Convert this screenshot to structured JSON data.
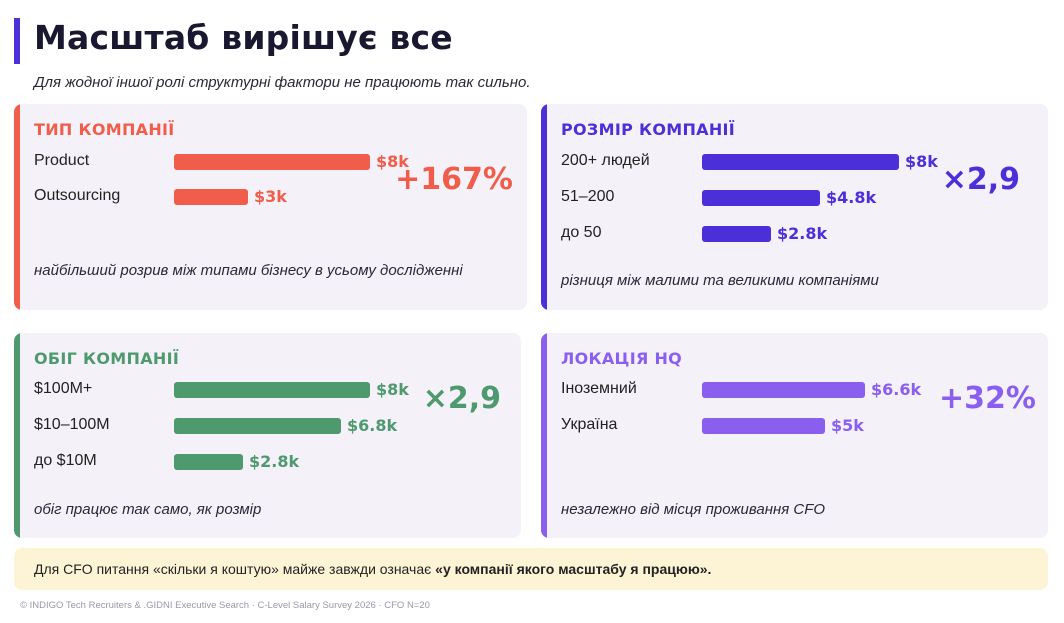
{
  "page": {
    "title": "Масштаб вирішує все",
    "subtitle": "Для жодної іншої ролі структурні фактори не працюють так сильно.",
    "callout_plain": "Для CFO питання «скільки я коштую» майже завжди означає ",
    "callout_bold": "«у компанії якого масштабу я працюю».",
    "footer": "© INDIGO Tech Recruiters & .GIDNI Executive Search · C-Level Salary Survey 2026 · CFO N=20"
  },
  "colors": {
    "type": "#f05d4b",
    "size": "#4b2fd9",
    "revenue": "#4e9a6e",
    "location": "#8a5ff0",
    "title_bar": "#4b2fd9",
    "card_bg": "#f4f2f8",
    "callout_bg": "#fdf4d6"
  },
  "chart_data": [
    {
      "type": "bar",
      "title": "ТИП КОМПАНІЇ",
      "categories": [
        "Product",
        "Outsourcing"
      ],
      "values": [
        8,
        3
      ],
      "value_labels": [
        "$8k",
        "$3k"
      ],
      "unit": "$k",
      "metric": "+167%",
      "note": "найбільший розрив між типами бізнесу в усьому дослідженні"
    },
    {
      "type": "bar",
      "title": "РОЗМІР КОМПАНІЇ",
      "categories": [
        "200+ людей",
        "51–200",
        "до 50"
      ],
      "values": [
        8,
        4.8,
        2.8
      ],
      "value_labels": [
        "$8k",
        "$4.8k",
        "$2.8k"
      ],
      "unit": "$k",
      "metric": "×2,9",
      "note": "різниця між малими та великими компаніями"
    },
    {
      "type": "bar",
      "title": "ОБІГ КОМПАНІЇ",
      "categories": [
        "$100M+",
        "$10–100M",
        "до $10M"
      ],
      "values": [
        8,
        6.8,
        2.8
      ],
      "value_labels": [
        "$8k",
        "$6.8k",
        "$2.8k"
      ],
      "unit": "$k",
      "metric": "×2,9",
      "note": "обіг працює так само, як розмір"
    },
    {
      "type": "bar",
      "title": "ЛОКАЦІЯ HQ",
      "categories": [
        "Іноземний",
        "Україна"
      ],
      "values": [
        6.6,
        5
      ],
      "value_labels": [
        "$6.6k",
        "$5k"
      ],
      "unit": "$k",
      "metric": "+32%",
      "note": "незалежно від місця проживання CFO"
    }
  ]
}
